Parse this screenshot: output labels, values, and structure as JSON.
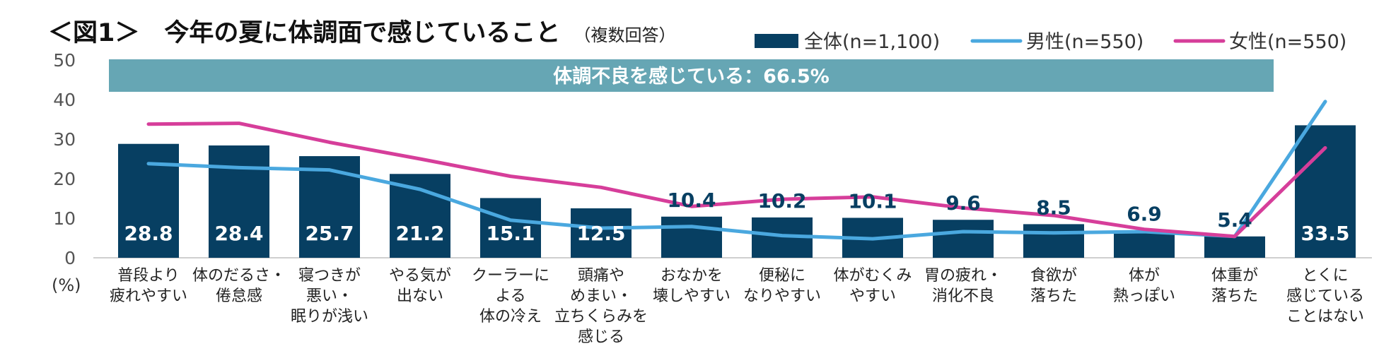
{
  "title": "＜図1＞　今年の夏に体調面で感じていること",
  "subtitle": "（複数回答）",
  "colors": {
    "overall": "#073f62",
    "male": "#4aa8df",
    "female": "#d63e9a",
    "banner": "#66a6b4",
    "axis_text": "#555555"
  },
  "chart_data": {
    "type": "bar",
    "title": "今年の夏に体調面で感じていること",
    "ylabel": "(%)",
    "ylim": [
      0,
      50
    ],
    "yticks": [
      "0",
      "10",
      "20",
      "30",
      "40",
      "50"
    ],
    "categories": [
      [
        "普段より",
        "疲れやすい"
      ],
      [
        "体のだるさ・",
        "倦怠感"
      ],
      [
        "寝つきが",
        "悪い・",
        "眠りが浅い"
      ],
      [
        "やる気が",
        "出ない"
      ],
      [
        "クーラーに",
        "よる",
        "体の冷え"
      ],
      [
        "頭痛や",
        "めまい・",
        "立ちくらみを",
        "感じる"
      ],
      [
        "おなかを",
        "壊しやすい"
      ],
      [
        "便秘に",
        "なりやすい"
      ],
      [
        "体がむくみ",
        "やすい"
      ],
      [
        "胃の疲れ・",
        "消化不良"
      ],
      [
        "食欲が",
        "落ちた"
      ],
      [
        "体が",
        "熱っぽい"
      ],
      [
        "体重が",
        "落ちた"
      ],
      [
        "とくに",
        "感じている",
        "ことはない"
      ]
    ],
    "series": [
      {
        "name": "全体(n=1,100)",
        "kind": "bar",
        "values": [
          28.8,
          28.4,
          25.7,
          21.2,
          15.1,
          12.5,
          10.4,
          10.2,
          10.1,
          9.6,
          8.5,
          6.9,
          5.4,
          33.5
        ]
      },
      {
        "name": "男性(n=550)",
        "kind": "line",
        "values": [
          23.8,
          22.8,
          22.2,
          17.3,
          9.5,
          7.5,
          7.9,
          5.6,
          4.8,
          6.6,
          6.3,
          6.6,
          5.4,
          39.5
        ]
      },
      {
        "name": "女性(n=550)",
        "kind": "line",
        "values": [
          33.8,
          34.0,
          29.2,
          25.0,
          20.6,
          17.8,
          13.0,
          14.8,
          15.4,
          12.6,
          10.7,
          7.2,
          5.4,
          27.8
        ]
      }
    ],
    "labels": [
      "28.8",
      "28.4",
      "25.7",
      "21.2",
      "15.1",
      "12.5",
      "10.4",
      "10.2",
      "10.1",
      "9.6",
      "8.5",
      "6.9",
      "5.4",
      "33.5"
    ],
    "annotation": "体調不良を感じている：66.5%",
    "legend": "top-right"
  }
}
